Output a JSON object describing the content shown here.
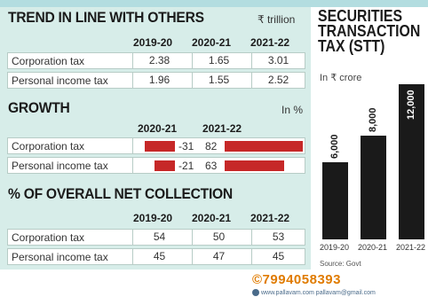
{
  "trend": {
    "title": "TREND IN LINE WITH OTHERS",
    "unit": "₹ trillion",
    "headers": [
      "2019-20",
      "2020-21",
      "2021-22"
    ],
    "rows": [
      {
        "label": "Corporation tax",
        "values": [
          "2.38",
          "1.65",
          "3.01"
        ]
      },
      {
        "label": "Personal income tax",
        "values": [
          "1.96",
          "1.55",
          "2.52"
        ]
      }
    ]
  },
  "growth": {
    "title": "GROWTH",
    "unit": "In %",
    "headers": [
      "2020-21",
      "2021-22"
    ],
    "rows": [
      {
        "label": "Corporation tax",
        "v2020": -31,
        "v2021": 82,
        "t2020": "-31",
        "t2021": "82"
      },
      {
        "label": "Personal income tax",
        "v2020": -21,
        "v2021": 63,
        "t2020": "-21",
        "t2021": "63"
      }
    ],
    "bar_color": "#c62828"
  },
  "share": {
    "title": "% OF OVERALL NET COLLECTION",
    "headers": [
      "2019-20",
      "2020-21",
      "2021-22"
    ],
    "rows": [
      {
        "label": "Corporation tax",
        "values": [
          "54",
          "50",
          "53"
        ]
      },
      {
        "label": "Personal income tax",
        "values": [
          "45",
          "47",
          "45"
        ]
      }
    ]
  },
  "stt": {
    "title_line1": "SECURITIES",
    "title_line2": "TRANSACTION",
    "title_line3": "TAX (STT)",
    "unit": "In ₹ crore",
    "source": "Source: Govt"
  },
  "footer": {
    "phone": "©7994058393",
    "url": "www.pallavam.com  pallavam@gmail.com"
  },
  "chart_data": [
    {
      "type": "bar",
      "title": "GROWTH",
      "ylabel": "In %",
      "categories": [
        "Corporation tax",
        "Personal income tax"
      ],
      "series": [
        {
          "name": "2020-21",
          "values": [
            -31,
            -21
          ]
        },
        {
          "name": "2021-22",
          "values": [
            82,
            63
          ]
        }
      ]
    },
    {
      "type": "bar",
      "title": "SECURITIES TRANSACTION TAX (STT)",
      "ylabel": "In ₹ crore",
      "categories": [
        "2019-20",
        "2020-21",
        "2021-22"
      ],
      "values": [
        6000,
        8000,
        12000
      ],
      "labels": [
        "6,000",
        "8,000",
        "12,000"
      ],
      "ylim": [
        0,
        12000
      ],
      "color": "#1a1a1a"
    }
  ]
}
